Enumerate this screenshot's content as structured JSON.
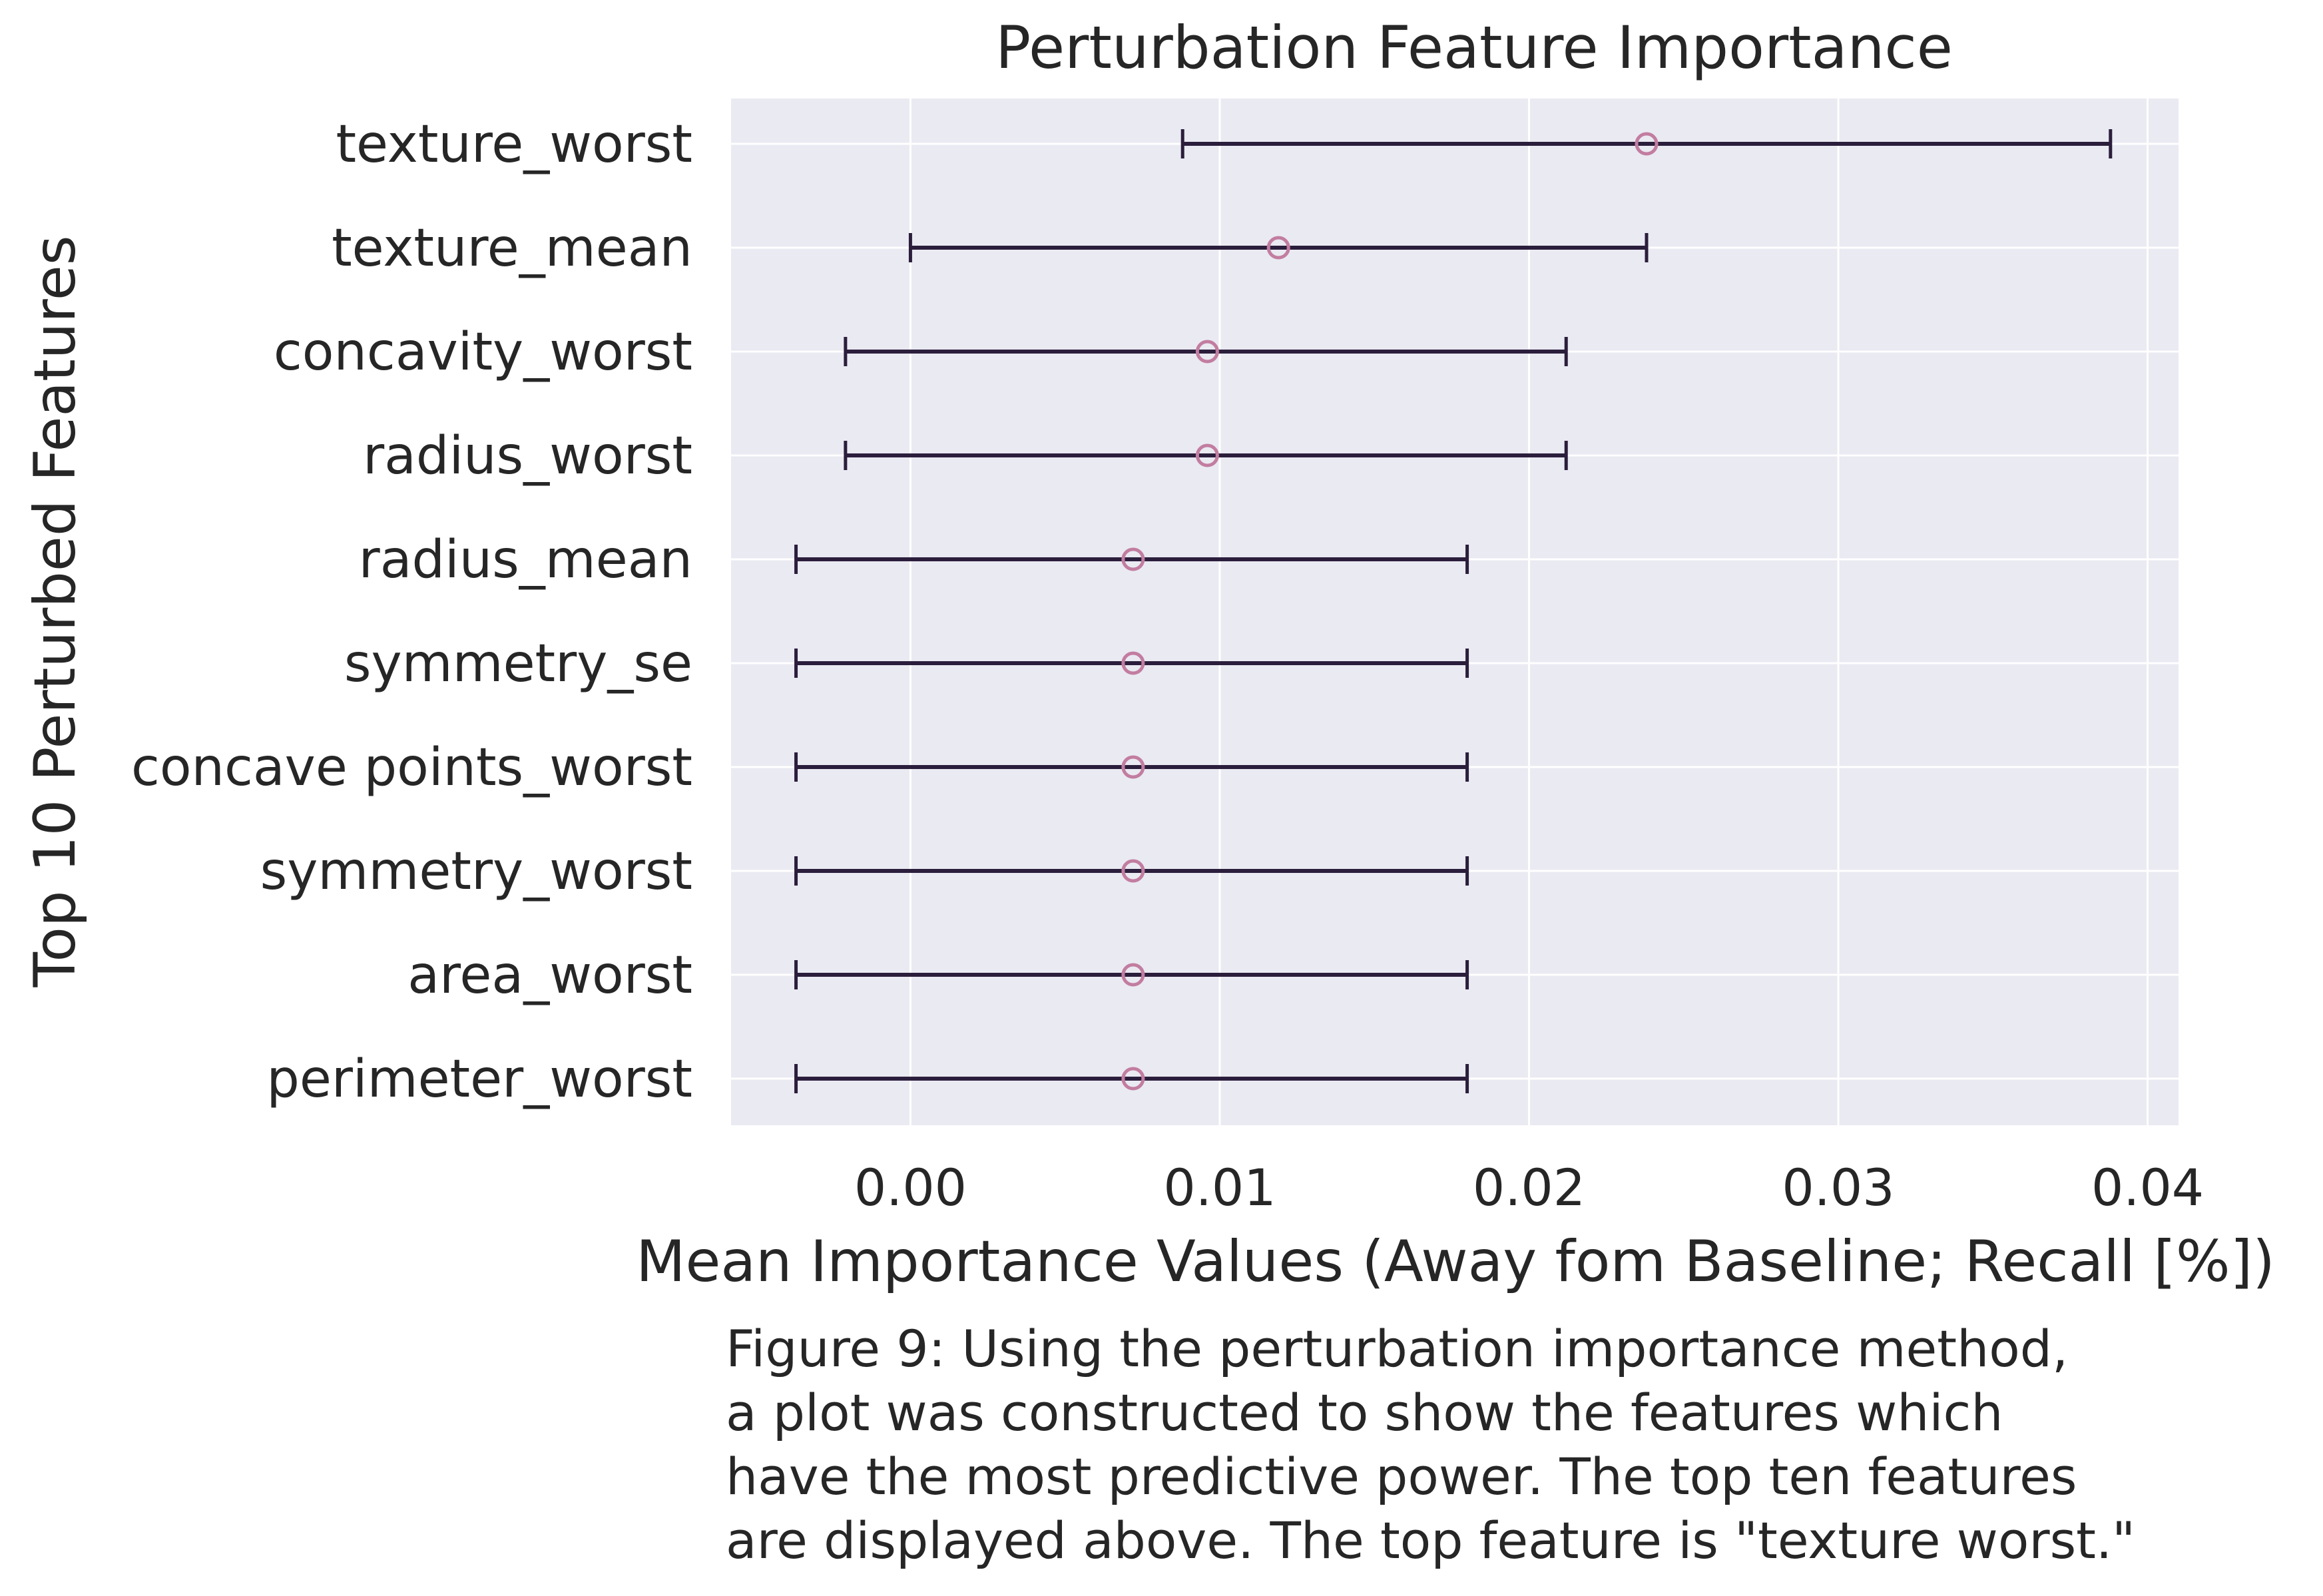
{
  "chart_data": {
    "type": "errorbar",
    "title": "Perturbation Feature Importance",
    "xlabel": "Mean Importance Values (Away fom Baseline; Recall [%])",
    "ylabel": "Top 10 Perturbed Features",
    "xlim": [
      -0.0058,
      0.041
    ],
    "xticks": [
      0.0,
      0.01,
      0.02,
      0.03,
      0.04
    ],
    "xtick_labels": [
      "0.00",
      "0.01",
      "0.02",
      "0.03",
      "0.04"
    ],
    "grid": true,
    "marker": "open-circle",
    "colors": {
      "background": "#eaeaf2",
      "grid": "#ffffff",
      "errorbar": "#2b1e3c",
      "marker": "#c27da0"
    },
    "features": [
      {
        "name": "texture_worst",
        "mean": 0.0238,
        "low": 0.0088,
        "high": 0.0388
      },
      {
        "name": "texture_mean",
        "mean": 0.0119,
        "low": 0.0,
        "high": 0.0238
      },
      {
        "name": "concavity_worst",
        "mean": 0.0096,
        "low": -0.0021,
        "high": 0.0212
      },
      {
        "name": "radius_worst",
        "mean": 0.0096,
        "low": -0.0021,
        "high": 0.0212
      },
      {
        "name": "radius_mean",
        "mean": 0.0072,
        "low": -0.0037,
        "high": 0.018
      },
      {
        "name": "symmetry_se",
        "mean": 0.0072,
        "low": -0.0037,
        "high": 0.018
      },
      {
        "name": "concave points_worst",
        "mean": 0.0072,
        "low": -0.0037,
        "high": 0.018
      },
      {
        "name": "symmetry_worst",
        "mean": 0.0072,
        "low": -0.0037,
        "high": 0.018
      },
      {
        "name": "area_worst",
        "mean": 0.0072,
        "low": -0.0037,
        "high": 0.018
      },
      {
        "name": "perimeter_worst",
        "mean": 0.0072,
        "low": -0.0037,
        "high": 0.018
      }
    ]
  },
  "caption": {
    "lines": [
      "Figure 9: Using the perturbation importance method,",
      "a plot was constructed to show the features which",
      "have the most predictive power. The top ten features",
      "are displayed above. The top feature is \"texture worst.\""
    ]
  }
}
